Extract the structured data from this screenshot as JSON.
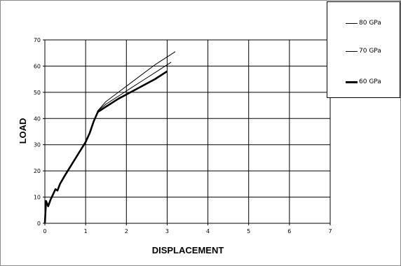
{
  "chart_data": {
    "type": "line",
    "title": "",
    "xlabel": "DISPLACEMENT",
    "ylabel": "LOAD",
    "xlim": [
      0,
      7
    ],
    "ylim": [
      0,
      70
    ],
    "xticks": [
      "0",
      "1",
      "2",
      "3",
      "4",
      "5",
      "6",
      "7"
    ],
    "yticks": [
      "0",
      "10",
      "20",
      "30",
      "40",
      "50",
      "60",
      "70"
    ],
    "grid": true,
    "legend_position": "top-right",
    "series": [
      {
        "name": "80 GPa",
        "color": "#000000",
        "weight": "thin",
        "points": [
          [
            0,
            0
          ],
          [
            0.03,
            8.5
          ],
          [
            0.08,
            6.5
          ],
          [
            0.14,
            9
          ],
          [
            0.2,
            11
          ],
          [
            0.26,
            13
          ],
          [
            0.31,
            12.5
          ],
          [
            0.37,
            15
          ],
          [
            0.5,
            18.5
          ],
          [
            0.7,
            23.5
          ],
          [
            0.9,
            28.5
          ],
          [
            1.0,
            31
          ],
          [
            1.1,
            34.5
          ],
          [
            1.2,
            39
          ],
          [
            1.3,
            43
          ],
          [
            1.5,
            46.5
          ],
          [
            1.8,
            50
          ],
          [
            2.1,
            53.5
          ],
          [
            2.4,
            57
          ],
          [
            2.7,
            60.5
          ],
          [
            3.0,
            63.5
          ],
          [
            3.2,
            65.5
          ]
        ]
      },
      {
        "name": "70 GPa",
        "color": "#000000",
        "weight": "thin",
        "points": [
          [
            0,
            0
          ],
          [
            0.03,
            8.5
          ],
          [
            0.08,
            6.5
          ],
          [
            0.14,
            9
          ],
          [
            0.2,
            11
          ],
          [
            0.26,
            13
          ],
          [
            0.31,
            12.5
          ],
          [
            0.37,
            15
          ],
          [
            0.5,
            18.5
          ],
          [
            0.7,
            23.5
          ],
          [
            0.9,
            28.5
          ],
          [
            1.0,
            31
          ],
          [
            1.1,
            34.5
          ],
          [
            1.2,
            39
          ],
          [
            1.3,
            43
          ],
          [
            1.5,
            45.5
          ],
          [
            1.8,
            48.5
          ],
          [
            2.1,
            51.5
          ],
          [
            2.4,
            54.5
          ],
          [
            2.7,
            57.5
          ],
          [
            3.0,
            60.5
          ],
          [
            3.1,
            61.5
          ]
        ]
      },
      {
        "name": "60 GPa",
        "color": "#000000",
        "weight": "thick",
        "points": [
          [
            0,
            0
          ],
          [
            0.03,
            8.5
          ],
          [
            0.08,
            6.5
          ],
          [
            0.14,
            9
          ],
          [
            0.2,
            11
          ],
          [
            0.26,
            13
          ],
          [
            0.31,
            12.5
          ],
          [
            0.37,
            15
          ],
          [
            0.5,
            18.5
          ],
          [
            0.7,
            23.5
          ],
          [
            0.9,
            28.5
          ],
          [
            1.0,
            31
          ],
          [
            1.1,
            34.5
          ],
          [
            1.2,
            39
          ],
          [
            1.3,
            42.5
          ],
          [
            1.5,
            44.5
          ],
          [
            1.8,
            47.5
          ],
          [
            2.1,
            50
          ],
          [
            2.4,
            52.5
          ],
          [
            2.7,
            55
          ],
          [
            3.0,
            58
          ]
        ]
      }
    ]
  }
}
